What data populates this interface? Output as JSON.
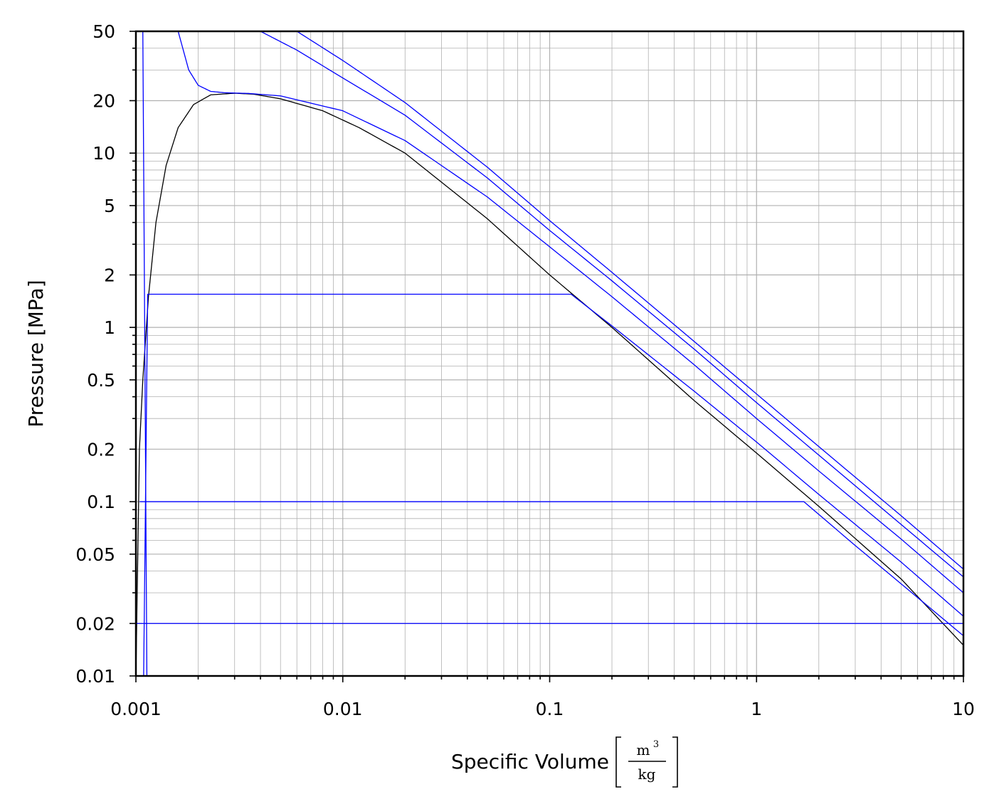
{
  "chart_data": {
    "type": "line",
    "xlabel": "Specific Volume",
    "xlabel_unit": {
      "numerator": "m",
      "exponent": "3",
      "denominator": "kg"
    },
    "ylabel": "Pressure [MPa]",
    "xscale": "log",
    "yscale": "log",
    "xlim": [
      0.001,
      10
    ],
    "ylim": [
      0.01,
      50
    ],
    "grid": true,
    "x_ticks": [
      {
        "value": 0.001,
        "label": "0.001"
      },
      {
        "value": 0.01,
        "label": "0.01"
      },
      {
        "value": 0.1,
        "label": "0.1"
      },
      {
        "value": 1,
        "label": "1"
      },
      {
        "value": 10,
        "label": "10"
      }
    ],
    "y_ticks": [
      {
        "value": 0.01,
        "label": "0.01"
      },
      {
        "value": 0.02,
        "label": "0.02"
      },
      {
        "value": 0.05,
        "label": "0.05"
      },
      {
        "value": 0.1,
        "label": "0.1"
      },
      {
        "value": 0.2,
        "label": "0.2"
      },
      {
        "value": 0.5,
        "label": "0.5"
      },
      {
        "value": 1,
        "label": "1"
      },
      {
        "value": 2,
        "label": "2"
      },
      {
        "value": 5,
        "label": "5"
      },
      {
        "value": 10,
        "label": "10"
      },
      {
        "value": 20,
        "label": "20"
      },
      {
        "value": 50,
        "label": "50"
      }
    ],
    "series": [
      {
        "color": "#000000",
        "points": [
          [
            0.001,
            0.01
          ],
          [
            0.00104,
            0.2
          ],
          [
            0.00108,
            0.5
          ],
          [
            0.00115,
            1.5
          ],
          [
            0.00125,
            4
          ],
          [
            0.0014,
            8.5
          ],
          [
            0.0016,
            14
          ],
          [
            0.0019,
            19
          ],
          [
            0.0023,
            21.6
          ],
          [
            0.003,
            22.06
          ],
          [
            0.0037,
            21.8
          ],
          [
            0.005,
            20.5
          ],
          [
            0.008,
            17.5
          ],
          [
            0.012,
            14
          ],
          [
            0.02,
            10
          ],
          [
            0.05,
            4.2
          ],
          [
            0.1,
            2
          ],
          [
            0.2,
            1
          ],
          [
            0.5,
            0.38
          ],
          [
            1,
            0.19
          ],
          [
            2,
            0.094
          ],
          [
            5,
            0.036
          ],
          [
            10,
            0.015
          ]
        ]
      },
      {
        "color": "#0000ff",
        "points": [
          [
            0.001,
            0.02
          ],
          [
            10,
            0.02
          ]
        ]
      },
      {
        "color": "#0000ff",
        "points": [
          [
            0.001043,
            0.1
          ],
          [
            1.694,
            0.1
          ],
          [
            3,
            0.056
          ],
          [
            10,
            0.017
          ]
        ]
      },
      {
        "color": "#0000ff",
        "points": [
          [
            0.00109,
            0.01
          ],
          [
            0.00114,
            1.55
          ],
          [
            0.127,
            1.55
          ],
          [
            0.2,
            1.02
          ],
          [
            0.5,
            0.43
          ],
          [
            1,
            0.22
          ],
          [
            2,
            0.11
          ],
          [
            5,
            0.045
          ],
          [
            10,
            0.022
          ]
        ]
      },
      {
        "color": "#0000ff",
        "points": [
          [
            0.00108,
            50
          ],
          [
            0.00113,
            0.01
          ]
        ]
      },
      {
        "color": "#0000ff",
        "points": [
          [
            0.0016,
            50
          ],
          [
            0.0018,
            30
          ],
          [
            0.002,
            24.5
          ],
          [
            0.0023,
            22.6
          ],
          [
            0.0027,
            22.2
          ],
          [
            0.0035,
            22
          ],
          [
            0.005,
            21.3
          ],
          [
            0.01,
            17.5
          ],
          [
            0.02,
            11.8
          ],
          [
            0.05,
            5.6
          ],
          [
            0.1,
            2.9
          ],
          [
            0.2,
            1.5
          ],
          [
            0.5,
            0.61
          ],
          [
            1,
            0.3
          ],
          [
            2,
            0.15
          ],
          [
            5,
            0.061
          ],
          [
            10,
            0.03
          ]
        ]
      },
      {
        "color": "#0000ff",
        "points": [
          [
            0.004,
            50
          ],
          [
            0.006,
            39
          ],
          [
            0.01,
            27
          ],
          [
            0.02,
            16.5
          ],
          [
            0.05,
            7.2
          ],
          [
            0.1,
            3.6
          ],
          [
            0.2,
            1.85
          ],
          [
            0.5,
            0.75
          ],
          [
            1,
            0.37
          ],
          [
            2,
            0.185
          ],
          [
            5,
            0.074
          ],
          [
            10,
            0.037
          ]
        ]
      },
      {
        "color": "#0000ff",
        "points": [
          [
            0.006,
            50
          ],
          [
            0.01,
            34
          ],
          [
            0.02,
            19.5
          ],
          [
            0.05,
            8.3
          ],
          [
            0.1,
            4.1
          ],
          [
            0.2,
            2.07
          ],
          [
            0.5,
            0.83
          ],
          [
            1,
            0.415
          ],
          [
            2,
            0.207
          ],
          [
            5,
            0.083
          ],
          [
            10,
            0.041
          ]
        ]
      }
    ]
  }
}
